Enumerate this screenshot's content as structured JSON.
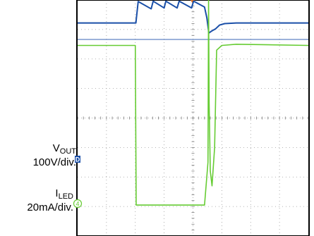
{
  "chart_data": {
    "type": "line",
    "grid": true,
    "series": [
      {
        "name": "VOUT",
        "scale": "100V/div.",
        "color": "#1a4fa8",
        "x": [
          0,
          2.02,
          2.1,
          2.55,
          2.62,
          3.0,
          3.06,
          3.45,
          3.52,
          3.95,
          4.02,
          4.4,
          4.48,
          4.55,
          4.65,
          4.78,
          4.92,
          5.1,
          5.5,
          6.0,
          8.0
        ],
        "y": [
          3.22,
          3.22,
          3.95,
          3.7,
          3.96,
          3.73,
          3.96,
          3.73,
          3.96,
          3.73,
          3.96,
          3.76,
          3.4,
          2.88,
          2.95,
          3.02,
          3.15,
          3.2,
          3.22,
          3.22,
          3.22
        ]
      },
      {
        "name": "ILED",
        "scale": "20mA/div.",
        "color": "#66cc33",
        "x": [
          0,
          2.0,
          2.03,
          4.4,
          4.52,
          4.54,
          4.56,
          4.6,
          4.66,
          4.75,
          4.82,
          5.0,
          5.5,
          8.0
        ],
        "y": [
          2.46,
          2.46,
          -2.95,
          -2.95,
          -1.5,
          4.0,
          0.5,
          -1.8,
          -2.3,
          -1.0,
          2.3,
          2.46,
          2.5,
          2.46
        ]
      }
    ],
    "labels": [
      {
        "name": "VOUT",
        "text_main": "V",
        "text_sub": "OUT",
        "scale": "100V/div.",
        "marker": "D"
      },
      {
        "name": "ILED",
        "text_main": "I",
        "text_sub": "LED",
        "scale": "20mA/div.",
        "marker": "4"
      }
    ]
  }
}
